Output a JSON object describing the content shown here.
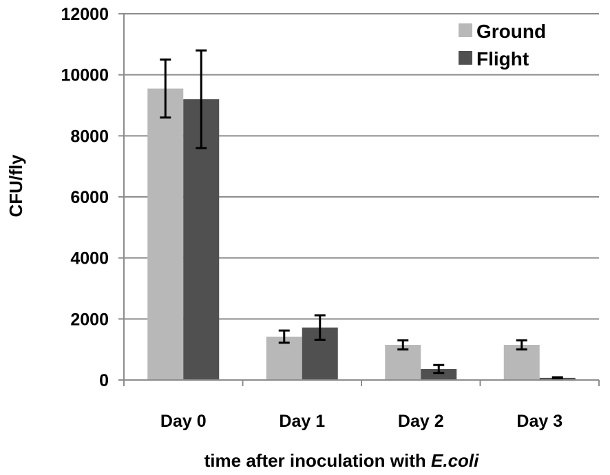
{
  "chart_data": {
    "type": "bar",
    "categories": [
      "Day 0",
      "Day 1",
      "Day 2",
      "Day 3"
    ],
    "series": [
      {
        "name": "Ground",
        "color": "#b8b8b8",
        "values": [
          9550,
          1420,
          1150,
          1150
        ],
        "errors": [
          950,
          200,
          150,
          150
        ]
      },
      {
        "name": "Flight",
        "color": "#505050",
        "values": [
          9200,
          1720,
          360,
          70
        ],
        "errors": [
          1600,
          400,
          130,
          20
        ]
      }
    ],
    "ylabel": "CFU/fly",
    "xlabel_prefix": "time after inoculation with ",
    "xlabel_italic": "E.coli",
    "ylim": [
      0,
      12000
    ],
    "yticks": [
      0,
      2000,
      4000,
      6000,
      8000,
      10000,
      12000
    ],
    "grid": true,
    "legend": "top-right"
  }
}
